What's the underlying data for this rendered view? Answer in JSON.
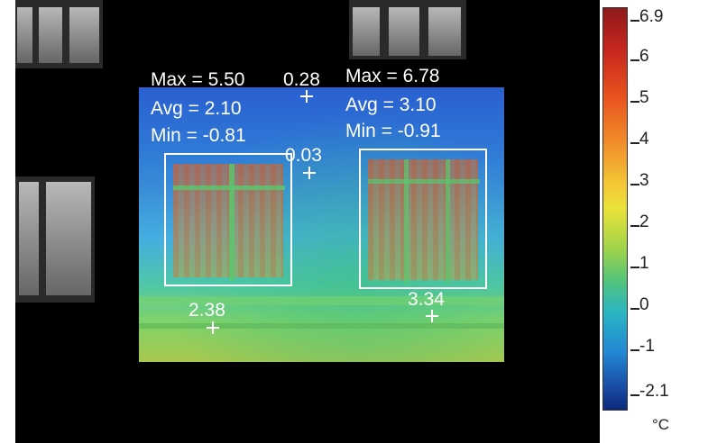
{
  "spots": [
    {
      "id": "spot-top",
      "value": "0.28"
    },
    {
      "id": "spot-mid",
      "value": "0.03"
    },
    {
      "id": "spot-left",
      "value": "2.38"
    },
    {
      "id": "spot-right",
      "value": "3.34"
    }
  ],
  "regions": {
    "left": {
      "max": "Max = 5.50",
      "avg": "Avg = 2.10",
      "min": "Min = -0.81"
    },
    "right": {
      "max": "Max = 6.78",
      "avg": "Avg = 3.10",
      "min": "Min = -0.91"
    }
  },
  "scale": {
    "labels": [
      "6.9",
      "6",
      "5",
      "4",
      "3",
      "2",
      "1",
      "0",
      "-1",
      "-2.1"
    ],
    "unit": "°C",
    "colors": [
      "#8e1b1b",
      "#e8521e",
      "#f4c836",
      "#52c47c",
      "#2286d4",
      "#0d2a7a"
    ]
  }
}
